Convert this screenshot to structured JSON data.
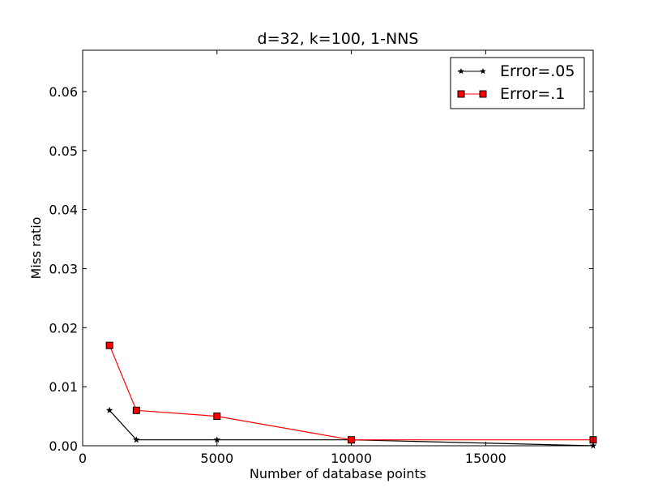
{
  "chart_data": {
    "type": "line",
    "title": "d=32, k=100, 1-NNS",
    "xlabel": "Number of database points",
    "ylabel": "Miss ratio",
    "xlim": [
      0,
      19000
    ],
    "ylim": [
      0,
      0.067
    ],
    "xticks": [
      0,
      5000,
      10000,
      15000
    ],
    "xtick_labels": [
      "0",
      "5000",
      "10000",
      "15000"
    ],
    "yticks": [
      0,
      0.01,
      0.02,
      0.03,
      0.04,
      0.05,
      0.06
    ],
    "ytick_labels": [
      "0.00",
      "0.01",
      "0.02",
      "0.03",
      "0.04",
      "0.05",
      "0.06"
    ],
    "grid": false,
    "legend_position": "top-right",
    "series": [
      {
        "name": "Error=.05",
        "color": "#000000",
        "marker": "star",
        "x": [
          1000,
          2000,
          5000,
          10000,
          19000
        ],
        "y": [
          0.006,
          0.001,
          0.001,
          0.001,
          0.0
        ]
      },
      {
        "name": "Error=.1",
        "color": "#ff0000",
        "marker": "square",
        "x": [
          1000,
          2000,
          5000,
          10000,
          19000
        ],
        "y": [
          0.017,
          0.006,
          0.005,
          0.001,
          0.001
        ]
      }
    ]
  }
}
